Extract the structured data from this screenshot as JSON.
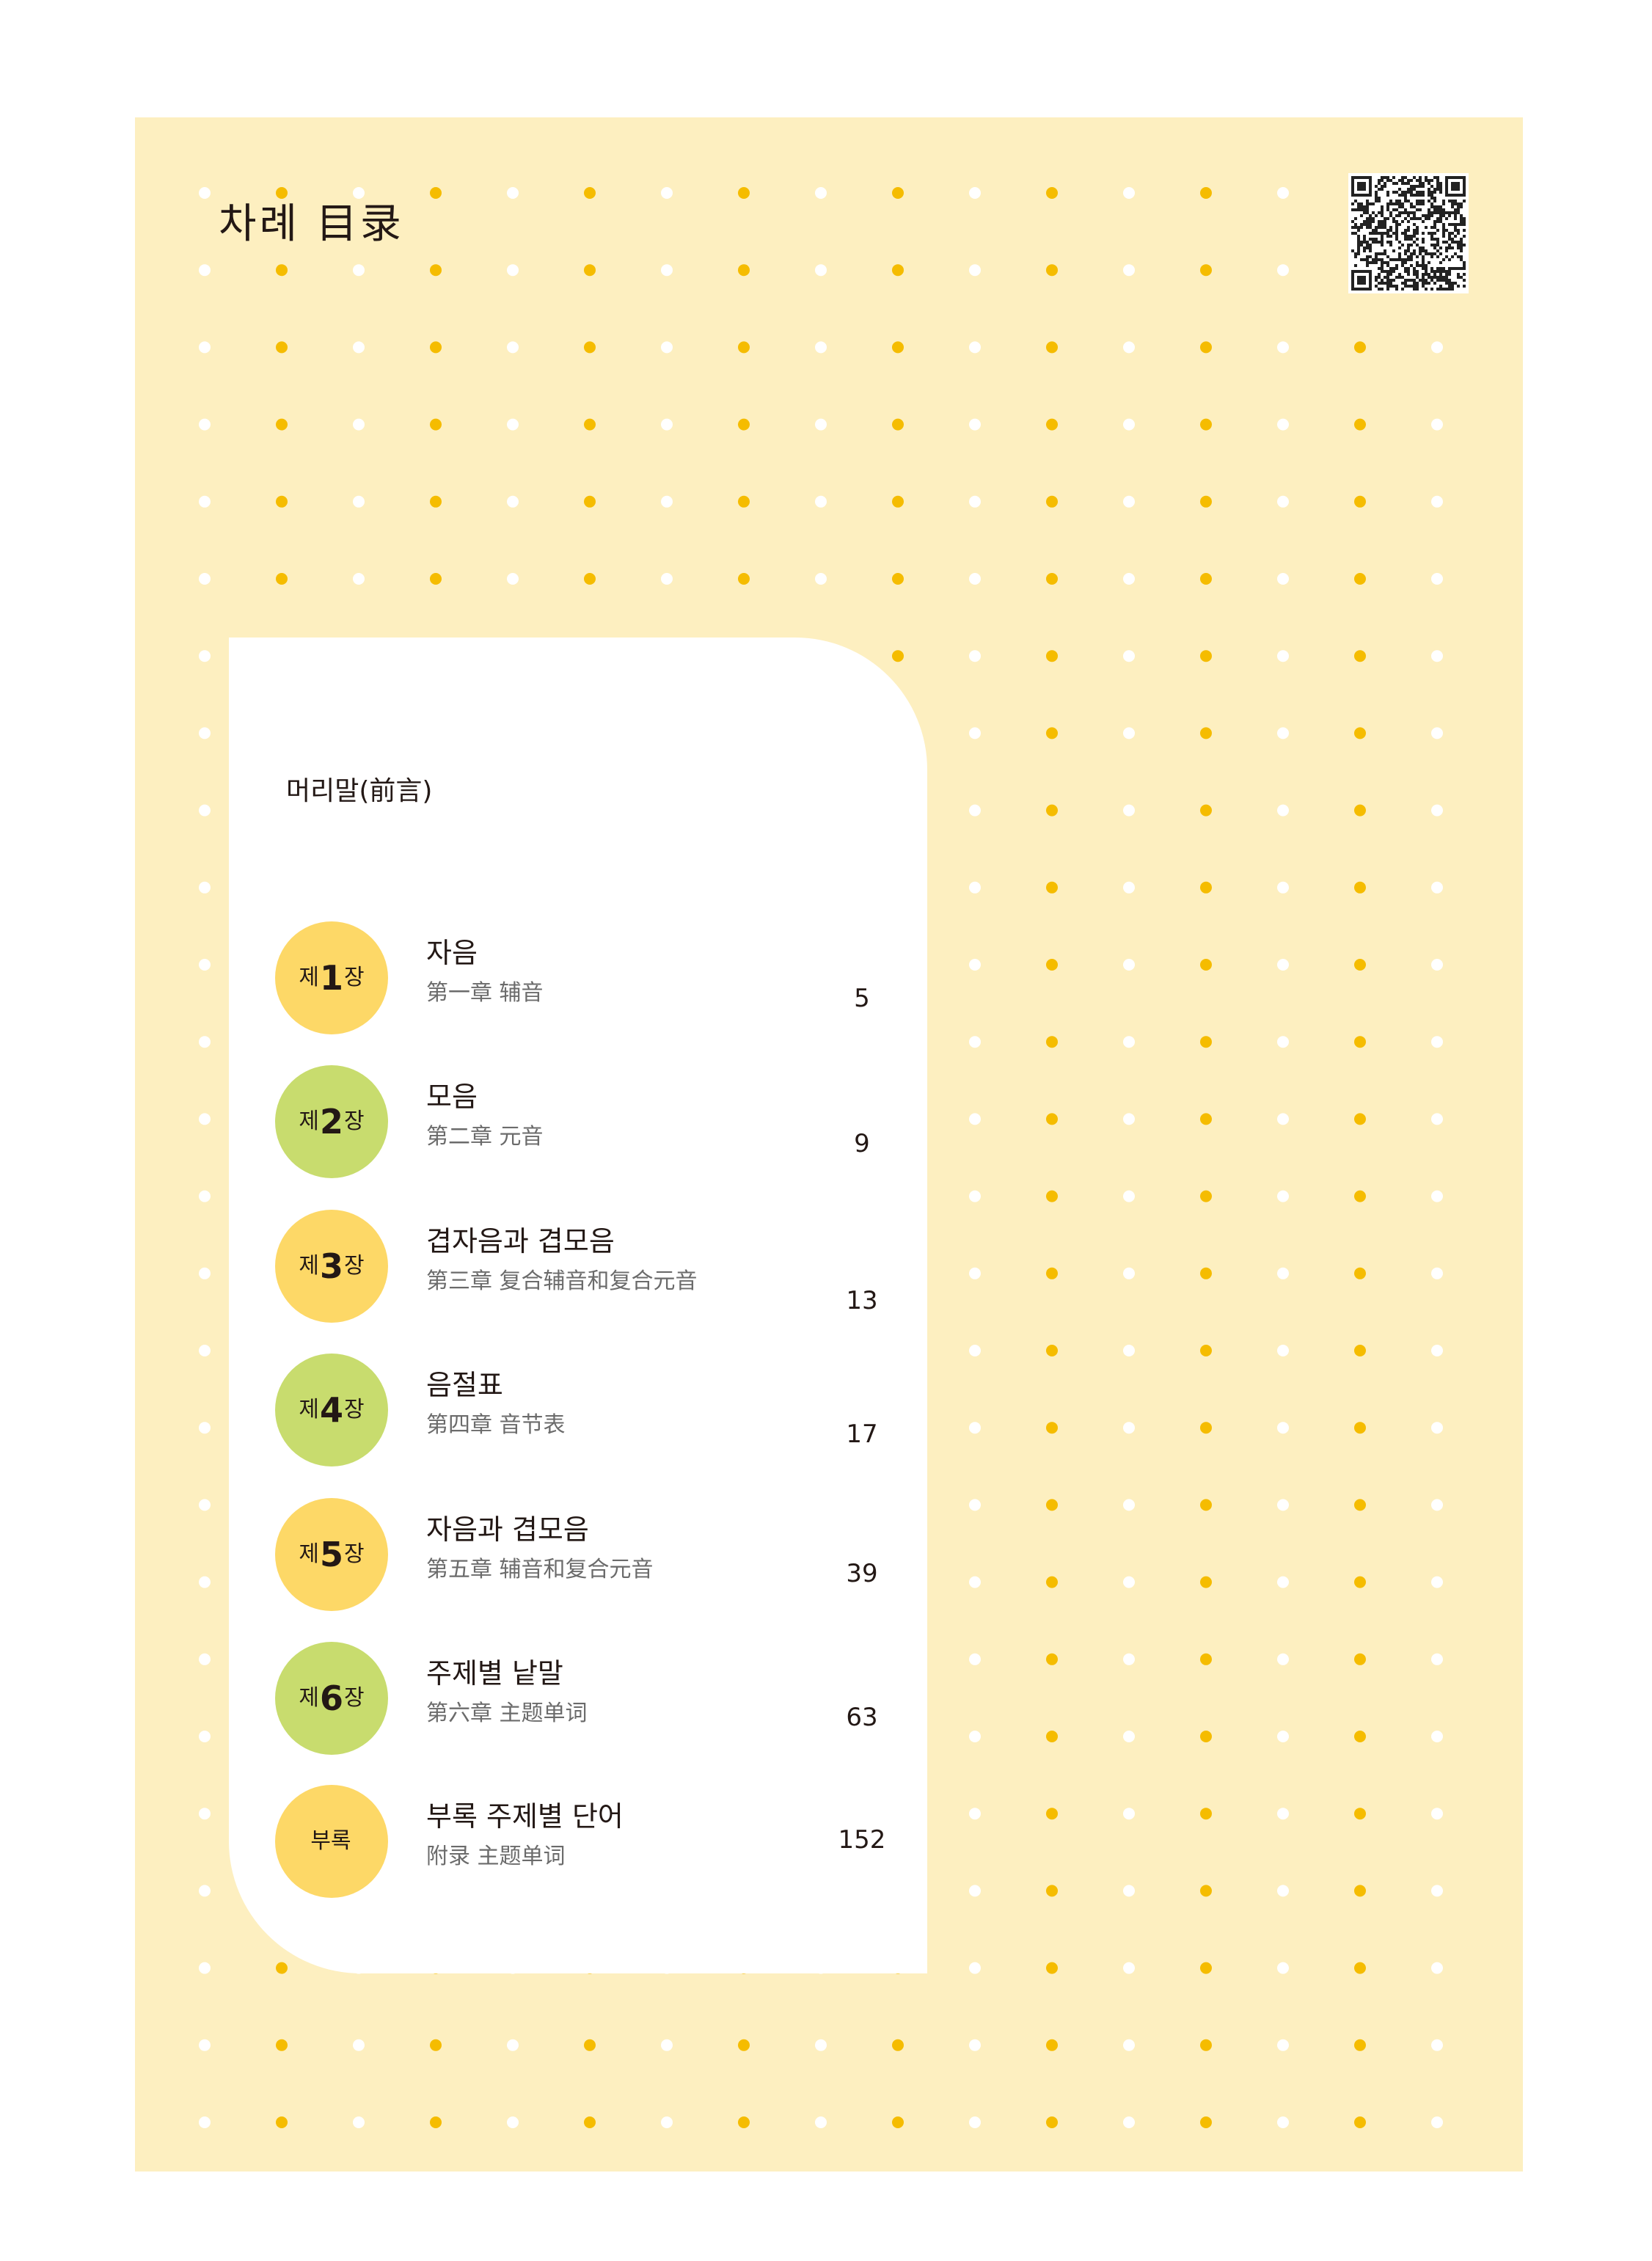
{
  "header": {
    "title": "차례 目录",
    "qr_icon": "qr-code-icon"
  },
  "colors": {
    "page_bg": "#FDEFC0",
    "dot_yellow": "#F5BC00",
    "dot_white": "#FFFFFF",
    "badge_yellow": "#FDD867",
    "badge_green": "#C8DC6E"
  },
  "toc": {
    "preface": "머리말(前言)",
    "items": [
      {
        "badge_prefix": "제",
        "badge_num": "1",
        "badge_suffix": "장",
        "title": "자음",
        "subtitle": "第一章 辅音",
        "page": "5",
        "color": "#FDD867"
      },
      {
        "badge_prefix": "제",
        "badge_num": "2",
        "badge_suffix": "장",
        "title": "모음",
        "subtitle": "第二章 元音",
        "page": "9",
        "color": "#C8DC6E"
      },
      {
        "badge_prefix": "제",
        "badge_num": "3",
        "badge_suffix": "장",
        "title": "겹자음과 겹모음",
        "subtitle": "第三章 复合辅音和复合元音",
        "page": "13",
        "color": "#FDD867"
      },
      {
        "badge_prefix": "제",
        "badge_num": "4",
        "badge_suffix": "장",
        "title": "음절표",
        "subtitle": "第四章 音节表",
        "page": "17",
        "color": "#C8DC6E"
      },
      {
        "badge_prefix": "제",
        "badge_num": "5",
        "badge_suffix": "장",
        "title": "자음과 겹모음",
        "subtitle": "第五章 辅音和复合元音",
        "page": "39",
        "color": "#FDD867"
      },
      {
        "badge_prefix": "제",
        "badge_num": "6",
        "badge_suffix": "장",
        "title": "주제별 낱말",
        "subtitle": "第六章 主题单词",
        "page": "63",
        "color": "#C8DC6E"
      },
      {
        "badge_prefix": "부록",
        "badge_num": "",
        "badge_suffix": "",
        "title": "부록 주제별 단어",
        "subtitle": "附录 主题单词",
        "page": "152",
        "color": "#FDD867"
      }
    ]
  }
}
